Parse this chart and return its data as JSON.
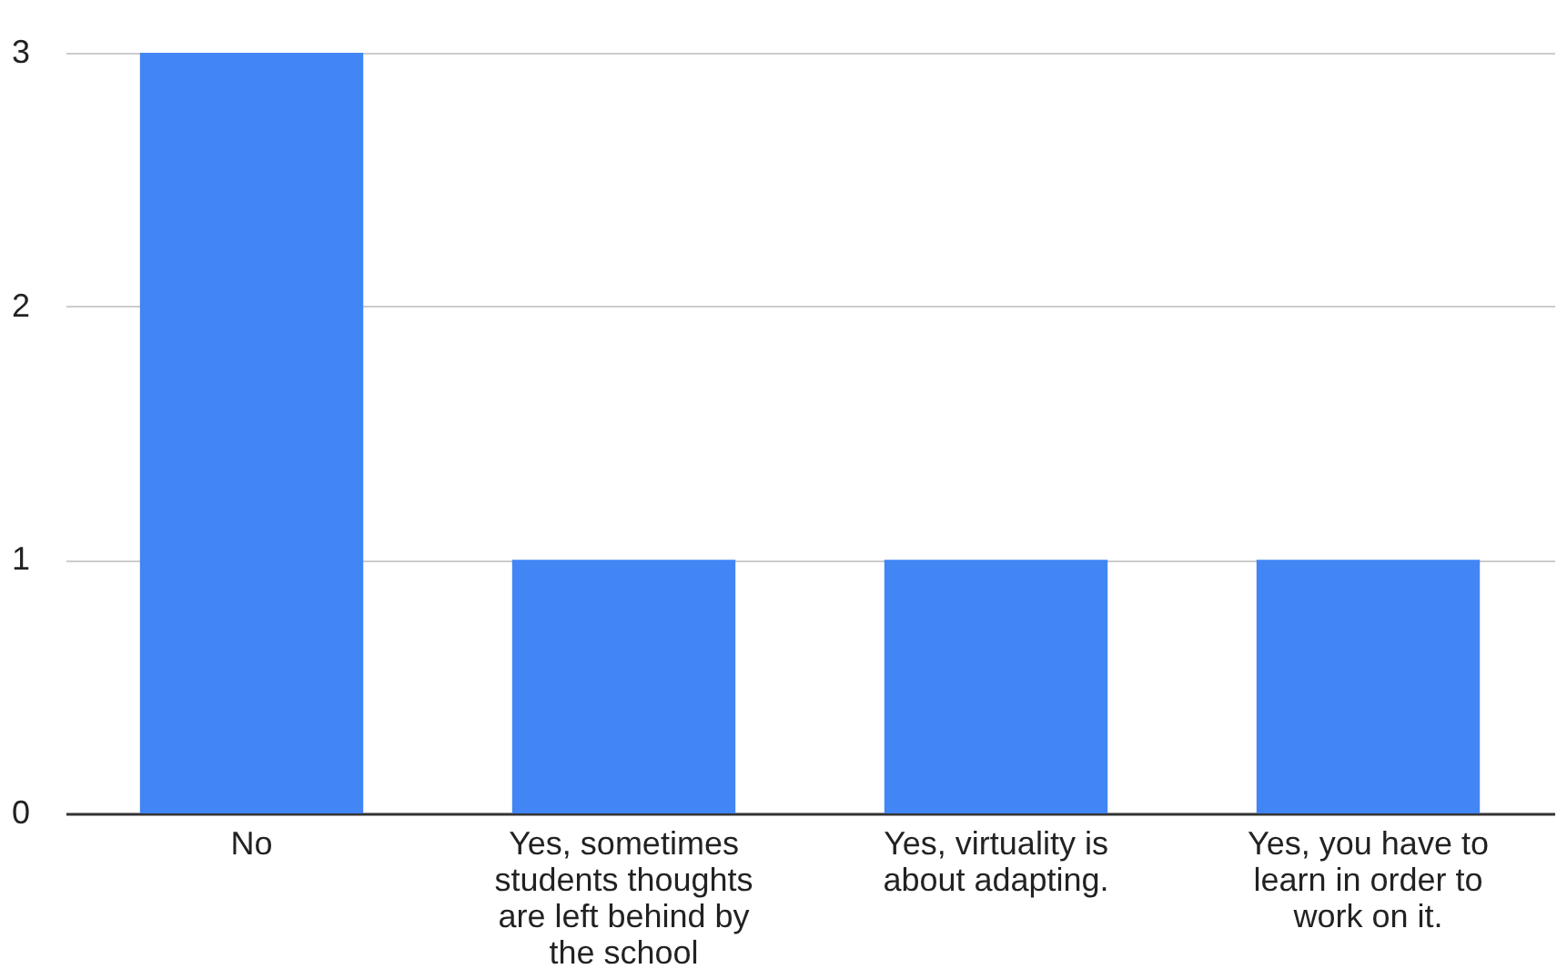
{
  "chart_data": {
    "type": "bar",
    "categories": [
      "No",
      "Yes, sometimes students thoughts are left behind by the school",
      "Yes, virtuality is about adapting.",
      "Yes, you have to learn in order to work on it."
    ],
    "values": [
      3,
      1,
      1,
      1
    ],
    "color": "#4285f4",
    "ylim": [
      0,
      3
    ],
    "yticks": [
      0,
      1,
      2,
      3
    ],
    "grid": "y"
  }
}
